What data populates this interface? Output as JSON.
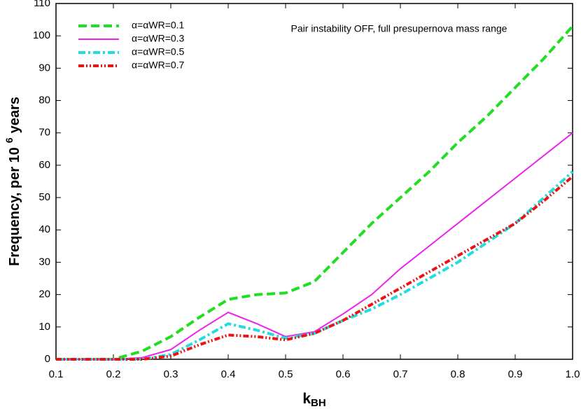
{
  "chart_data": {
    "type": "line",
    "annotation": "Pair instability OFF, full presupernova mass range",
    "xlabel": {
      "text": "k",
      "subscript": "BH"
    },
    "ylabel": {
      "text": "Frequency, per 10",
      "superscript": "6",
      "after": "years"
    },
    "x": [
      0.1,
      0.15,
      0.2,
      0.25,
      0.3,
      0.35,
      0.4,
      0.45,
      0.5,
      0.55,
      0.6,
      0.65,
      0.7,
      0.75,
      0.8,
      0.85,
      0.9,
      0.95,
      1.0
    ],
    "series": [
      {
        "name": "α=αWR=0.1",
        "color": "#22dd22",
        "dash": "dashed",
        "values": [
          0,
          0,
          0,
          2.5,
          7,
          13,
          18.5,
          20,
          20.5,
          24,
          33,
          42,
          50,
          58,
          67,
          75,
          84,
          93,
          103
        ]
      },
      {
        "name": "α=αWR=0.3",
        "color": "#ee22ee",
        "dash": "solid",
        "values": [
          0,
          0,
          0,
          0.5,
          3,
          9,
          14.5,
          11,
          7,
          8.5,
          14,
          20,
          28,
          35,
          42,
          49,
          56,
          63,
          70
        ]
      },
      {
        "name": "α=αWR=0.5",
        "color": "#22dddd",
        "dash": "dash-dot",
        "values": [
          0,
          0,
          0,
          0,
          1.5,
          6,
          11,
          9,
          6.5,
          8,
          12,
          15.5,
          20,
          25,
          30,
          36,
          42,
          50,
          58
        ]
      },
      {
        "name": "α=αWR=0.7",
        "color": "#ee1111",
        "dash": "dash-dot-dot",
        "values": [
          0,
          0,
          0,
          0,
          1,
          4.5,
          7.5,
          7,
          6,
          8,
          12,
          17,
          22,
          27,
          32,
          37,
          42,
          49,
          56.5
        ]
      }
    ],
    "xlim": [
      0.1,
      1.0
    ],
    "ylim": [
      0,
      110
    ],
    "xticks": [
      0.1,
      0.2,
      0.3,
      0.4,
      0.5,
      0.6,
      0.7,
      0.8,
      0.9,
      {
        "value": 1.0,
        "label": "1.0"
      }
    ],
    "yticks": [
      0,
      10,
      20,
      30,
      40,
      50,
      60,
      70,
      80,
      90,
      100,
      110
    ],
    "legend": "upper-left"
  }
}
